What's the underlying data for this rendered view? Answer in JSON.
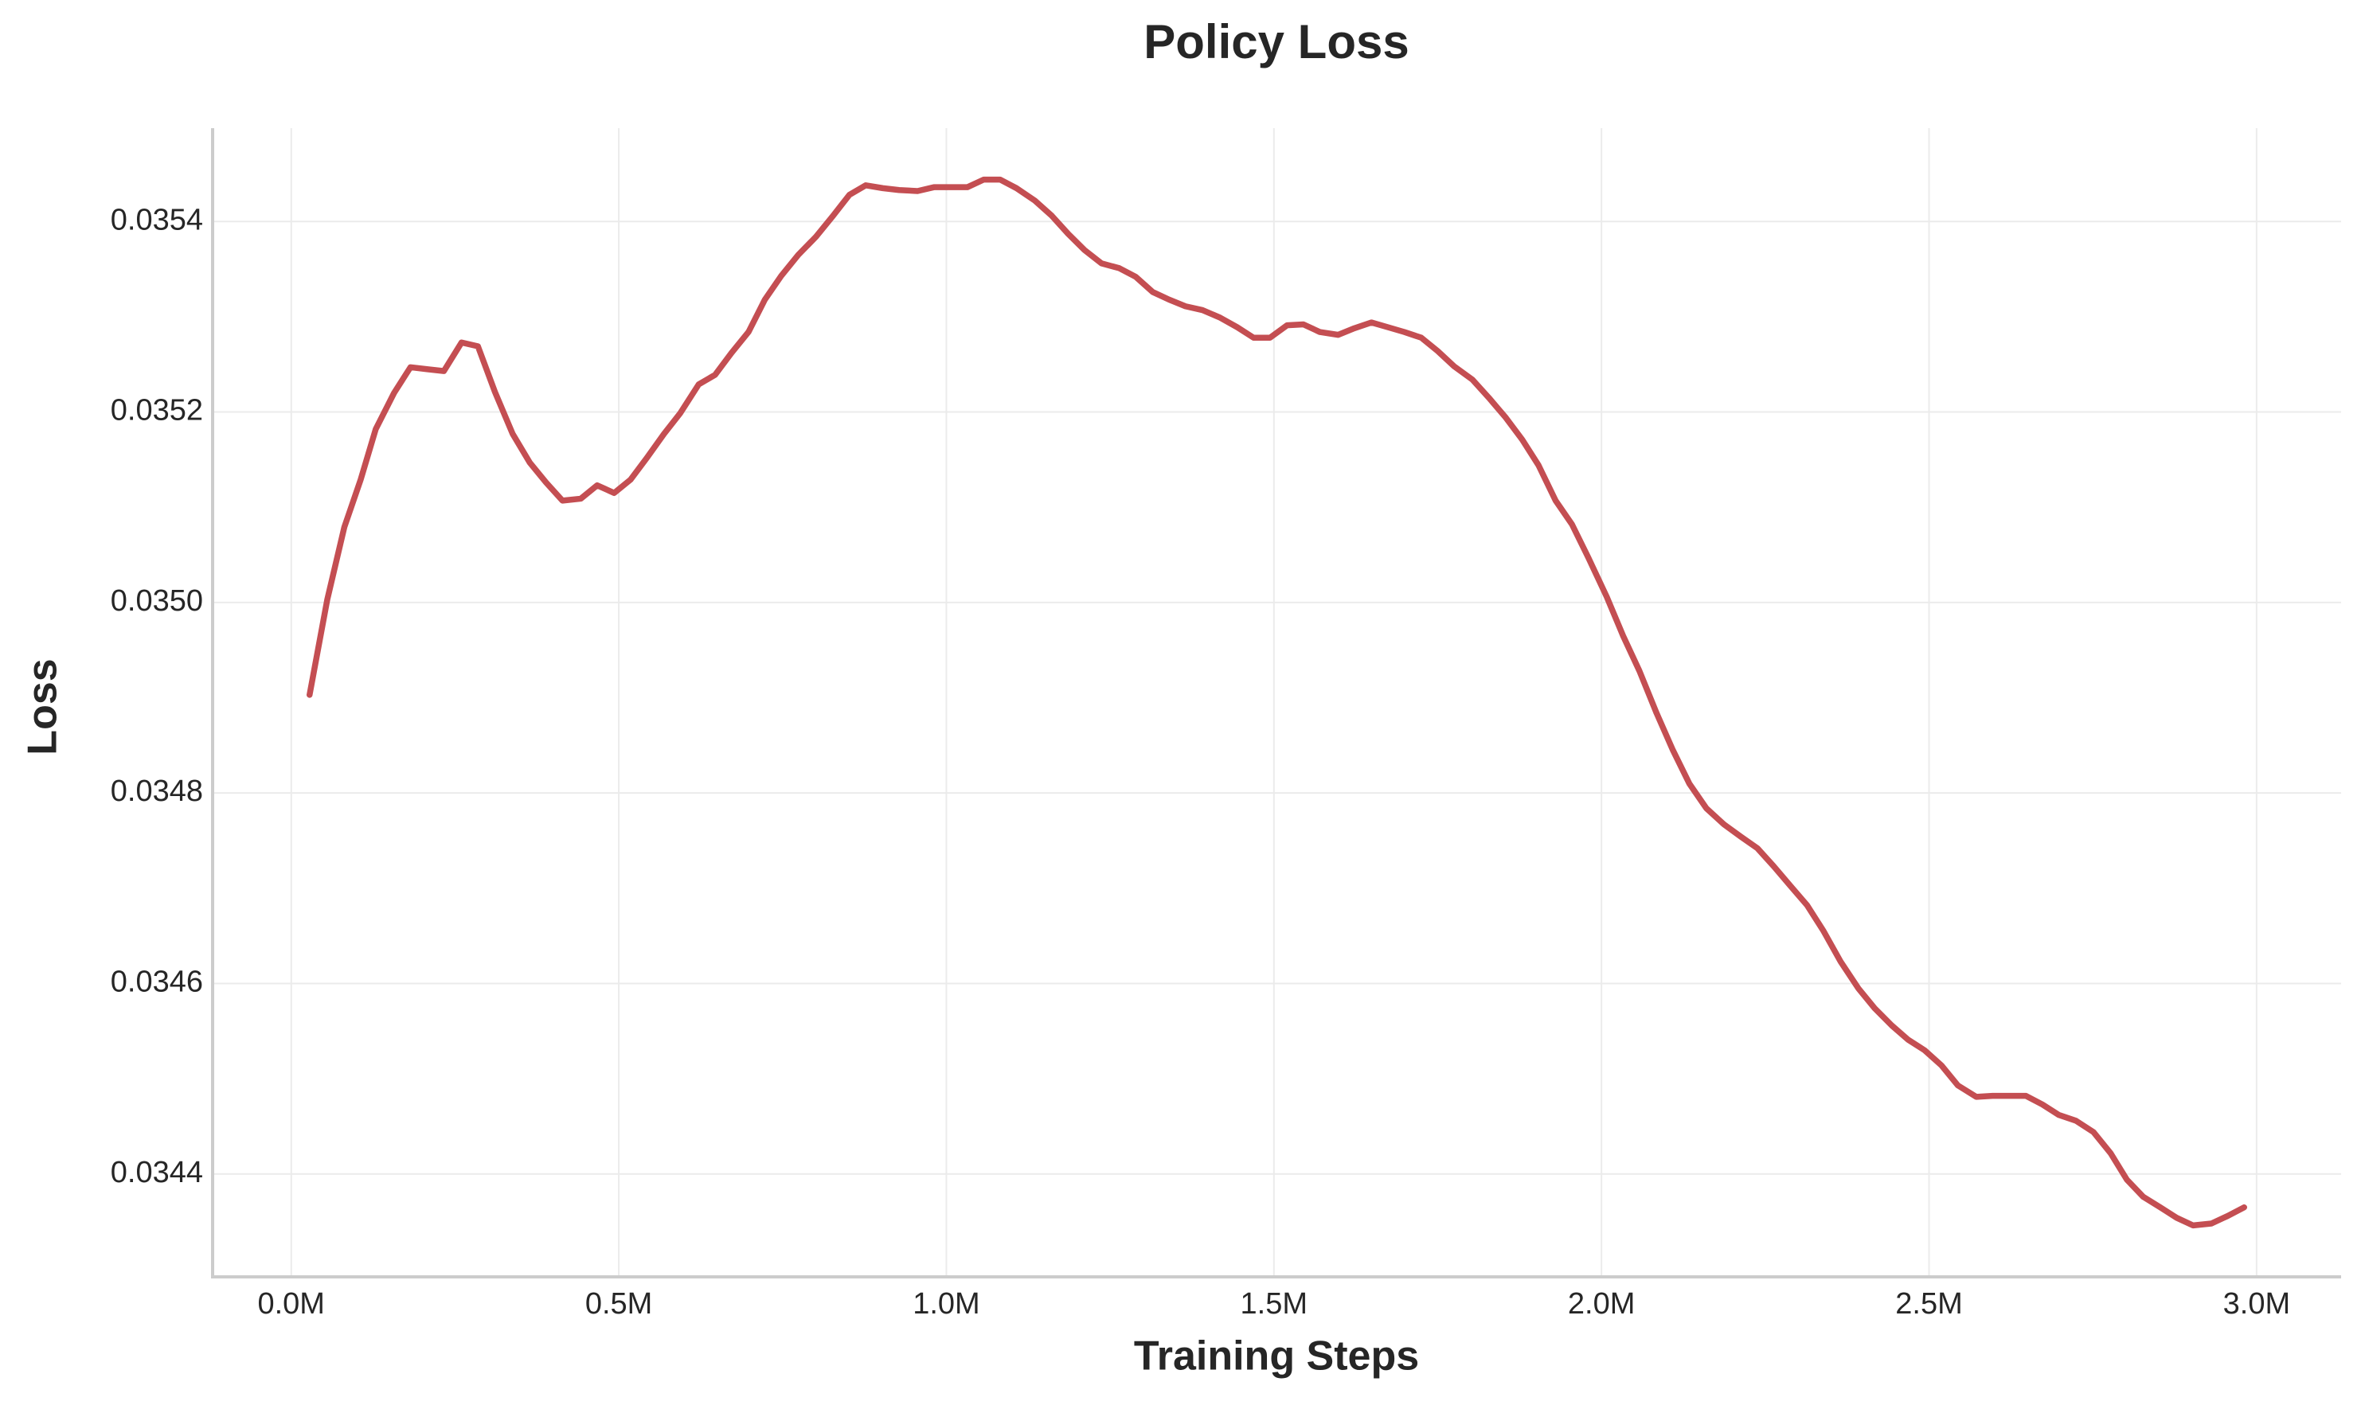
{
  "chart_data": {
    "type": "line",
    "title": "Policy Loss",
    "x_label": "Training Steps",
    "y_label": "Loss",
    "grid": true,
    "xlim": [
      -120000,
      3129000
    ],
    "ylim": [
      0.034292,
      0.035498
    ],
    "xticks": [
      {
        "value": 0,
        "label": "0.0M"
      },
      {
        "value": 500000,
        "label": "0.5M"
      },
      {
        "value": 1000000,
        "label": "1.0M"
      },
      {
        "value": 1500000,
        "label": "1.5M"
      },
      {
        "value": 2000000,
        "label": "2.0M"
      },
      {
        "value": 2500000,
        "label": "2.5M"
      },
      {
        "value": 3000000,
        "label": "3.0M"
      }
    ],
    "yticks": [
      0.0344,
      0.0346,
      0.0348,
      {
        "value": 0.035,
        "label": "0.0350"
      },
      0.0352,
      0.0354
    ],
    "x": [
      28000,
      55000,
      81000,
      106000,
      129000,
      157000,
      182000,
      207000,
      233000,
      260000,
      285000,
      311000,
      338000,
      364000,
      389000,
      414000,
      442000,
      467000,
      493000,
      518000,
      543000,
      569000,
      594000,
      622000,
      647000,
      672000,
      698000,
      723000,
      748000,
      774000,
      801000,
      827000,
      852000,
      877000,
      903000,
      928000,
      956000,
      981000,
      1006000,
      1032000,
      1057000,
      1082000,
      1107000,
      1135000,
      1161000,
      1186000,
      1211000,
      1237000,
      1264000,
      1289000,
      1315000,
      1340000,
      1365000,
      1391000,
      1418000,
      1444000,
      1469000,
      1494000,
      1520000,
      1545000,
      1570000,
      1598000,
      1623000,
      1649000,
      1674000,
      1699000,
      1725000,
      1750000,
      1775000,
      1803000,
      1828000,
      1854000,
      1879000,
      1904000,
      1930000,
      1955000,
      1980000,
      2008000,
      2033000,
      2058000,
      2084000,
      2109000,
      2134000,
      2160000,
      2187000,
      2213000,
      2238000,
      2263000,
      2289000,
      2314000,
      2339000,
      2365000,
      2392000,
      2417000,
      2443000,
      2468000,
      2493000,
      2519000,
      2544000,
      2572000,
      2597000,
      2622000,
      2648000,
      2673000,
      2698000,
      2724000,
      2751000,
      2777000,
      2802000,
      2827000,
      2853000,
      2878000,
      2903000,
      2931000,
      2956000,
      2981000
    ],
    "series": [
      {
        "name": "Policy Loss",
        "color": "#c44e52",
        "values": [
          0.034903,
          0.035003,
          0.035079,
          0.035129,
          0.035182,
          0.03522,
          0.035247,
          0.035245,
          0.035243,
          0.035273,
          0.035269,
          0.035221,
          0.035177,
          0.035147,
          0.035126,
          0.035107,
          0.035109,
          0.035123,
          0.035115,
          0.035129,
          0.035152,
          0.035177,
          0.035199,
          0.035229,
          0.035239,
          0.035262,
          0.035284,
          0.035318,
          0.035343,
          0.035365,
          0.035384,
          0.035406,
          0.035428,
          0.035438,
          0.035435,
          0.035433,
          0.035432,
          0.035436,
          0.035436,
          0.035436,
          0.035444,
          0.035444,
          0.035435,
          0.035422,
          0.035406,
          0.035387,
          0.03537,
          0.035356,
          0.035351,
          0.035342,
          0.035326,
          0.035318,
          0.035311,
          0.035307,
          0.035299,
          0.035289,
          0.035278,
          0.035278,
          0.035291,
          0.035292,
          0.035284,
          0.035281,
          0.035288,
          0.035294,
          0.035289,
          0.035284,
          0.035278,
          0.035264,
          0.035248,
          0.035234,
          0.035215,
          0.035194,
          0.035171,
          0.035144,
          0.035107,
          0.035082,
          0.035047,
          0.035006,
          0.034965,
          0.034928,
          0.034884,
          0.034845,
          0.03481,
          0.034784,
          0.034767,
          0.034754,
          0.034742,
          0.034723,
          0.034702,
          0.034682,
          0.034655,
          0.034623,
          0.034595,
          0.034574,
          0.034556,
          0.034541,
          0.03453,
          0.034514,
          0.034493,
          0.034481,
          0.034482,
          0.034482,
          0.034482,
          0.034473,
          0.034462,
          0.034456,
          0.034444,
          0.034422,
          0.034394,
          0.034376,
          0.034365,
          0.034354,
          0.034346,
          0.034348,
          0.034356,
          0.034365
        ]
      }
    ]
  }
}
